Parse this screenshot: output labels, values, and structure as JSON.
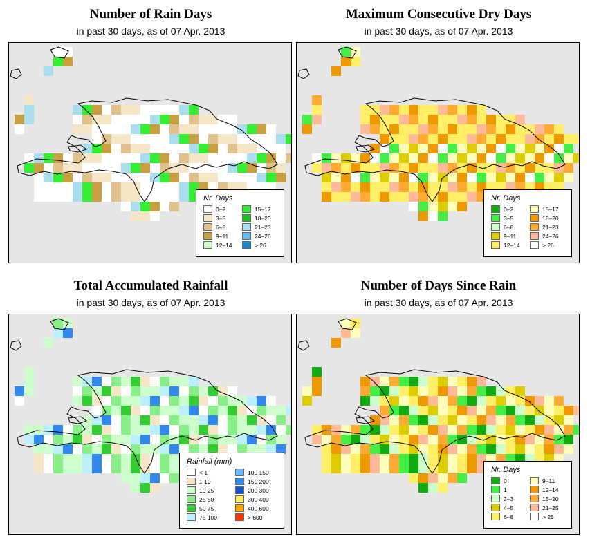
{
  "panels": [
    {
      "id": "rain-days",
      "title": "Number of Rain Days",
      "subtitle": "in past 30 days, as of  07 Apr. 2013",
      "legend": {
        "title": "Nr. Days",
        "items": [
          {
            "label": "0–2",
            "color": "#ffffff"
          },
          {
            "label": "3–5",
            "color": "#f5e6c8"
          },
          {
            "label": "6–8",
            "color": "#e0c18c"
          },
          {
            "label": "9–11",
            "color": "#c8a040"
          },
          {
            "label": "12–14",
            "color": "#ccffcc"
          },
          {
            "label": "15–17",
            "color": "#33ee33"
          },
          {
            "label": "18–20",
            "color": "#22bb22"
          },
          {
            "label": "21–23",
            "color": "#aaddee"
          },
          {
            "label": "24–26",
            "color": "#66bbee"
          },
          {
            "label": "> 26",
            "color": "#1e88cc"
          }
        ]
      }
    },
    {
      "id": "dry-days",
      "title": "Maximum Consecutive Dry Days",
      "subtitle": "in past 30 days, as of  07 Apr. 2013",
      "legend": {
        "title": "Nr. Days",
        "items": [
          {
            "label": "0–2",
            "color": "#11aa11"
          },
          {
            "label": "3–5",
            "color": "#44ee44"
          },
          {
            "label": "6–8",
            "color": "#ccffcc"
          },
          {
            "label": "9–11",
            "color": "#ddcc00"
          },
          {
            "label": "12–14",
            "color": "#ffee66"
          },
          {
            "label": "15–17",
            "color": "#ffffbb"
          },
          {
            "label": "18–20",
            "color": "#ee9900"
          },
          {
            "label": "21–23",
            "color": "#ffaa33"
          },
          {
            "label": "24–26",
            "color": "#ffbb99"
          },
          {
            "label": "> 26",
            "color": "#ffffff"
          }
        ]
      }
    },
    {
      "id": "rainfall",
      "title": "Total Accumulated Rainfall",
      "subtitle": "in past 30 days, as of  07 Apr. 2013",
      "legend": {
        "title": "Rainfall (mm)",
        "items": [
          {
            "label": "< 1",
            "color": "#ffffff"
          },
          {
            "label": "1   10",
            "color": "#f5e6c8"
          },
          {
            "label": "10   25",
            "color": "#ccffcc"
          },
          {
            "label": "25   50",
            "color": "#88ee88"
          },
          {
            "label": "50   75",
            "color": "#33cc33"
          },
          {
            "label": "75  100",
            "color": "#bbeeff"
          },
          {
            "label": "100  150",
            "color": "#66bbff"
          },
          {
            "label": "150  200",
            "color": "#3388ee"
          },
          {
            "label": "200  300",
            "color": "#1155cc"
          },
          {
            "label": "300  400",
            "color": "#ffee66"
          },
          {
            "label": "400  600",
            "color": "#ffaa00"
          },
          {
            "label": "> 600",
            "color": "#ff3300"
          }
        ]
      }
    },
    {
      "id": "since-rain",
      "title": "Number of Days Since Rain",
      "subtitle": "in past 30 days, as of  07 Apr. 2013",
      "legend": {
        "title": "Nr. Days",
        "items": [
          {
            "label": "0",
            "color": "#11aa11"
          },
          {
            "label": "1",
            "color": "#44ee44"
          },
          {
            "label": "2–3",
            "color": "#ccffcc"
          },
          {
            "label": "4–5",
            "color": "#ddcc00"
          },
          {
            "label": "6–8",
            "color": "#ffee66"
          },
          {
            "label": "9–11",
            "color": "#ffffbb"
          },
          {
            "label": "12–14",
            "color": "#ee9900"
          },
          {
            "label": "15–20",
            "color": "#ffaa33"
          },
          {
            "label": "21–25",
            "color": "#ffbb99"
          },
          {
            "label": "> 25",
            "color": "#ffffff"
          }
        ]
      }
    }
  ]
}
